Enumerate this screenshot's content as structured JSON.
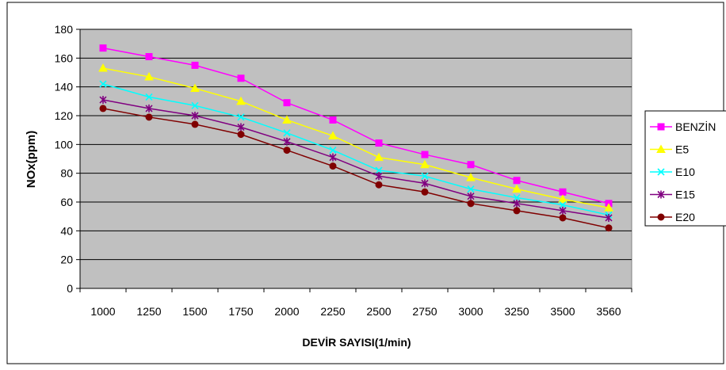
{
  "chart_data": {
    "type": "line",
    "title": "",
    "xlabel": "DEVİR SAYISI(1/min)",
    "ylabel": "NOx(ppm)",
    "ylim": [
      0,
      180
    ],
    "y_ticks": [
      "0",
      "20",
      "40",
      "60",
      "80",
      "100",
      "120",
      "140",
      "160",
      "180"
    ],
    "grid": "horizontal",
    "legend_position": "right",
    "plot_background": "#c0c0c0",
    "categories": [
      "1000",
      "1250",
      "1500",
      "1750",
      "2000",
      "2250",
      "2500",
      "2750",
      "3000",
      "3250",
      "3500",
      "3560"
    ],
    "series": [
      {
        "name": "BENZİN",
        "color": "#ff00ff",
        "marker": "square",
        "values": [
          167,
          161,
          155,
          146,
          129,
          117,
          101,
          93,
          86,
          75,
          67,
          59
        ]
      },
      {
        "name": "E5",
        "color": "#ffff00",
        "marker": "triangle",
        "values": [
          153,
          147,
          139,
          130,
          117,
          106,
          91,
          86,
          77,
          69,
          62,
          56
        ]
      },
      {
        "name": "E10",
        "color": "#00ffff",
        "marker": "x",
        "values": [
          142,
          133,
          127,
          119,
          108,
          96,
          82,
          78,
          69,
          63,
          58,
          51
        ]
      },
      {
        "name": "E15",
        "color": "#800080",
        "marker": "star",
        "values": [
          131,
          125,
          120,
          112,
          102,
          91,
          78,
          73,
          64,
          59,
          54,
          49
        ]
      },
      {
        "name": "E20",
        "color": "#800000",
        "marker": "circle",
        "values": [
          125,
          119,
          114,
          107,
          96,
          85,
          72,
          67,
          59,
          54,
          49,
          42
        ]
      }
    ]
  }
}
